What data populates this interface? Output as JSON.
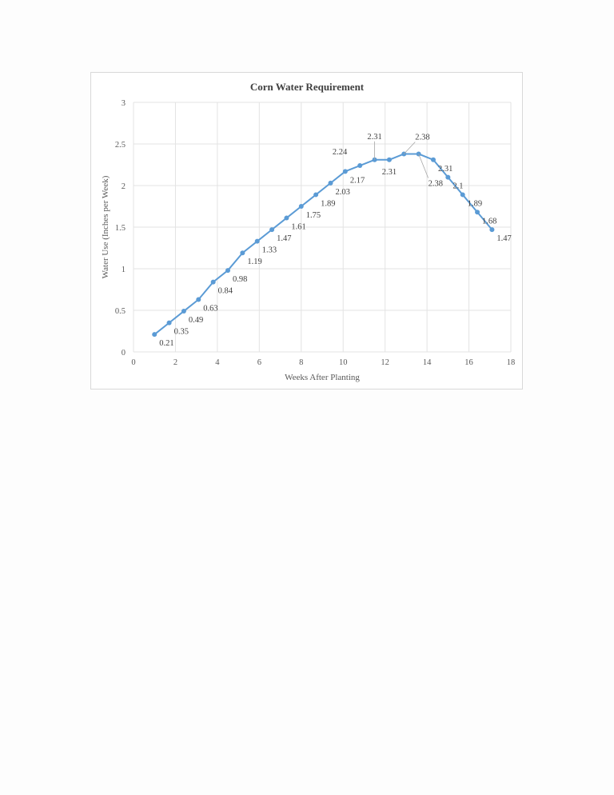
{
  "chart_data": {
    "type": "line",
    "title": "Corn Water Requirement",
    "xlabel": "Weeks After Planting",
    "ylabel": "Water Use (Inches per Week)",
    "xlim": [
      0,
      18
    ],
    "ylim": [
      0,
      3
    ],
    "xticks": [
      0,
      2,
      4,
      6,
      8,
      10,
      12,
      14,
      16,
      18
    ],
    "yticks": [
      0,
      0.5,
      1,
      1.5,
      2,
      2.5,
      3
    ],
    "xtick_labels": [
      "0",
      "2",
      "4",
      "6",
      "8",
      "10",
      "12",
      "14",
      "16",
      "18"
    ],
    "ytick_labels": [
      "0",
      "0.5",
      "1",
      "1.5",
      "2",
      "2.5",
      "3"
    ],
    "grid": true,
    "series": [
      {
        "color": "#5b9bd5",
        "x": [
          1,
          1.7,
          2.4,
          3.1,
          3.8,
          4.5,
          5.2,
          5.9,
          6.6,
          7.3,
          8.0,
          8.7,
          9.4,
          10.1,
          10.8,
          11.5,
          12.2,
          12.9,
          13.6,
          14.3,
          15.0,
          15.7,
          16.4,
          17.1
        ],
        "values": [
          0.21,
          0.35,
          0.49,
          0.63,
          0.84,
          0.98,
          1.19,
          1.33,
          1.47,
          1.61,
          1.75,
          1.89,
          2.03,
          2.17,
          2.24,
          2.31,
          2.31,
          2.38,
          2.38,
          2.31,
          2.1,
          1.89,
          1.68,
          1.47
        ],
        "labels": [
          "0.21",
          "0.35",
          "0.49",
          "0.63",
          "0.84",
          "0.98",
          "1.19",
          "1.33",
          "1.47",
          "1.61",
          "1.75",
          "1.89",
          "2.03",
          "2.17",
          "2.24",
          "2.31",
          "2.31",
          "2.38",
          "2.38",
          "2.31",
          "2.1",
          "1.89",
          "1.68",
          "1.47"
        ]
      }
    ]
  }
}
